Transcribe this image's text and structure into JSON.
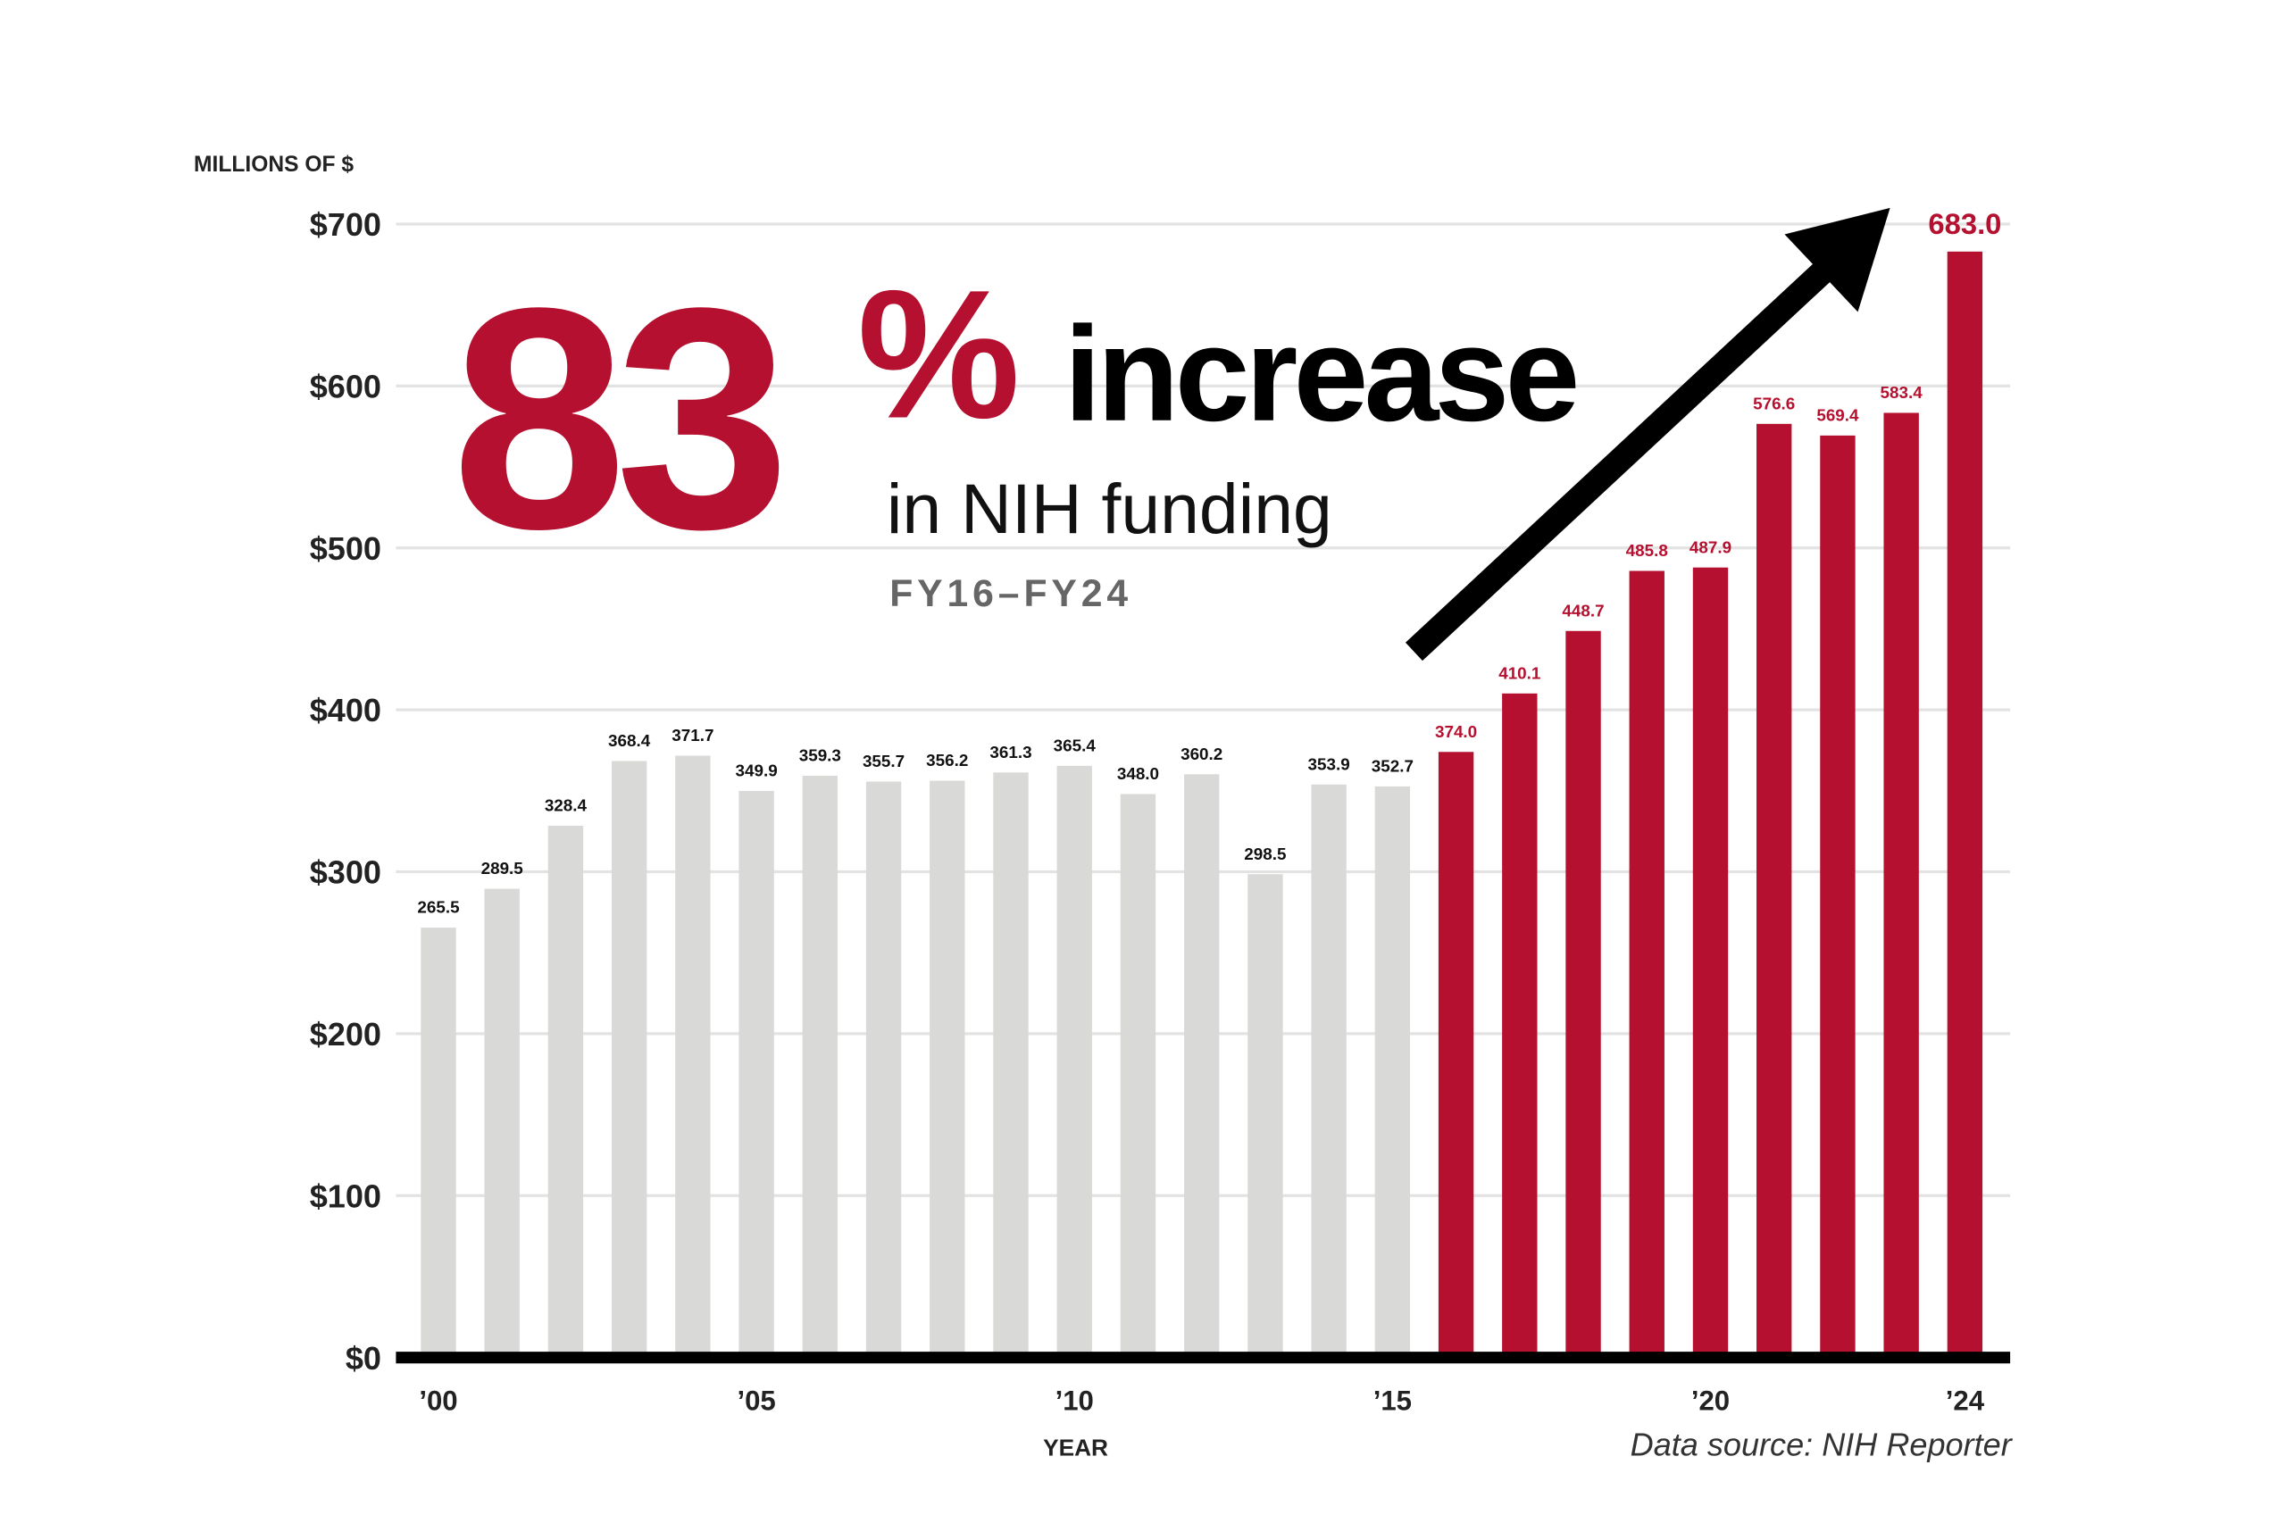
{
  "chart_data": {
    "type": "bar",
    "y_axis_label": "MILLIONS OF $",
    "x_axis_label": "YEAR",
    "headline_number": "83",
    "headline_percent": "%",
    "headline_word": "increase",
    "subheadline": "in NIH funding",
    "period": "FY16–FY24",
    "source": "Data source: NIH Reporter",
    "categories": [
      "’00",
      null,
      null,
      null,
      null,
      "’05",
      null,
      null,
      null,
      null,
      "’10",
      null,
      null,
      null,
      null,
      "’15",
      null,
      null,
      null,
      null,
      "’20",
      null,
      null,
      null,
      "’24"
    ],
    "values": [
      265.5,
      289.5,
      328.4,
      368.4,
      371.7,
      349.9,
      359.3,
      355.7,
      356.2,
      361.3,
      365.4,
      348.0,
      360.2,
      298.5,
      353.9,
      352.7,
      374.0,
      410.1,
      448.7,
      485.8,
      487.9,
      576.6,
      569.4,
      583.4,
      683.0
    ],
    "value_labels": [
      "265.5",
      "289.5",
      "328.4",
      "368.4",
      "371.7",
      "349.9",
      "359.3",
      "355.7",
      "356.2",
      "361.3",
      "365.4",
      "348.0",
      "360.2",
      "298.5",
      "353.9",
      "352.7",
      "374.0",
      "410.1",
      "448.7",
      "485.8",
      "487.9",
      "576.6",
      "569.4",
      "583.4",
      "683.0"
    ],
    "colors": [
      "#d9d9d7",
      "#d9d9d7",
      "#d9d9d7",
      "#d9d9d7",
      "#d9d9d7",
      "#d9d9d7",
      "#d9d9d7",
      "#d9d9d7",
      "#d9d9d7",
      "#d9d9d7",
      "#d9d9d7",
      "#d9d9d7",
      "#d9d9d7",
      "#d9d9d7",
      "#d9d9d7",
      "#d9d9d7",
      "#b5102f",
      "#b5102f",
      "#b5102f",
      "#b5102f",
      "#b5102f",
      "#b5102f",
      "#b5102f",
      "#b5102f",
      "#b5102f"
    ],
    "ylim": [
      0,
      700
    ],
    "yticks": [
      {
        "value": 0,
        "label": "$0"
      },
      {
        "value": 100,
        "label": "$100"
      },
      {
        "value": 200,
        "label": "$200"
      },
      {
        "value": 300,
        "label": "$300"
      },
      {
        "value": 400,
        "label": "$400"
      },
      {
        "value": 500,
        "label": "$500"
      },
      {
        "value": 600,
        "label": "$600"
      },
      {
        "value": 700,
        "label": "$700"
      }
    ],
    "grid": true
  }
}
